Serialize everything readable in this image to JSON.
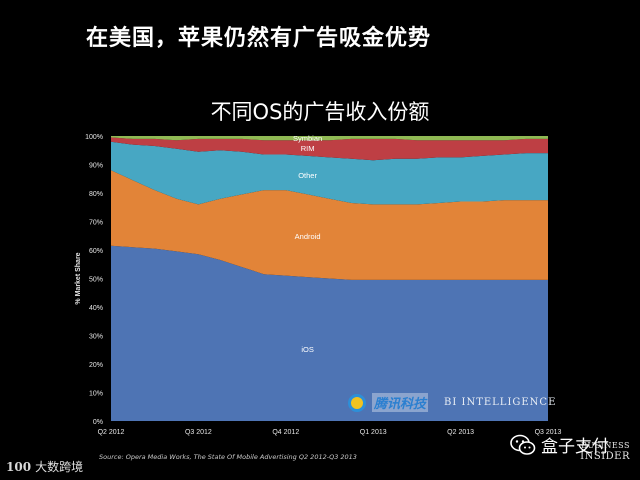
{
  "header": {
    "title": "在美国，苹果仍然有广告吸金优势"
  },
  "chart_data": {
    "type": "area",
    "stacked": true,
    "title": "不同OS的广告收入份额",
    "xlabel": "",
    "ylabel": "% Market Share",
    "ylim": [
      0,
      100
    ],
    "y_ticks": [
      "0%",
      "10%",
      "20%",
      "30%",
      "40%",
      "50%",
      "60%",
      "70%",
      "80%",
      "90%",
      "100%"
    ],
    "categories": [
      "Q2 2012",
      "Q3 2012",
      "Q4 2012",
      "Q1 2013",
      "Q2 2013",
      "Q3 2013"
    ],
    "x": [
      0,
      0.25,
      0.5,
      0.75,
      1.0,
      1.25,
      1.5,
      1.75,
      2.0,
      2.25,
      2.5,
      2.75,
      3.0,
      3.25,
      3.5,
      3.75,
      4.0,
      4.25,
      4.5,
      4.75,
      5.0
    ],
    "series": [
      {
        "name": "iOS",
        "color": "#4e74b4",
        "values": [
          61.5,
          61,
          60.5,
          59.5,
          58.5,
          56.5,
          54,
          51.5,
          51,
          50.5,
          50,
          49.5,
          49.5,
          49.5,
          49.5,
          49.5,
          49.5,
          49.5,
          49.5,
          49.5,
          49.5
        ]
      },
      {
        "name": "Android",
        "color": "#e28438",
        "values": [
          26.5,
          23.5,
          20.5,
          18.5,
          17.5,
          21.5,
          25.5,
          29.5,
          30,
          29,
          28,
          27,
          26.5,
          26.5,
          26.5,
          27,
          27.5,
          27.5,
          28,
          28,
          28
        ]
      },
      {
        "name": "Other",
        "color": "#47a7c3",
        "values": [
          10,
          12.5,
          15.5,
          17.5,
          18.5,
          17,
          15,
          12.5,
          12.5,
          13.5,
          14.5,
          15.5,
          15.5,
          16,
          16,
          16,
          15.5,
          16,
          16,
          16.5,
          16.5
        ]
      },
      {
        "name": "RIM",
        "color": "#be3f44",
        "values": [
          1.5,
          2,
          2.5,
          3,
          4.5,
          4,
          4.5,
          5,
          5,
          5.5,
          6,
          7,
          7.5,
          7,
          6.5,
          6,
          6,
          5.5,
          5,
          5,
          5
        ]
      },
      {
        "name": "Symbian",
        "color": "#90b954",
        "values": [
          0.5,
          1,
          1,
          1.5,
          1,
          1,
          1,
          1.5,
          1.5,
          1.5,
          1.5,
          1,
          1,
          1,
          1.5,
          1.5,
          1.5,
          1.5,
          1.5,
          1,
          1
        ]
      }
    ],
    "labels_on_areas": true,
    "grid": false,
    "legend": "none",
    "source": "Source: Opera Media Works, The State Of Mobile Advertising Q2 2012-Q3 2013"
  },
  "branding": {
    "bi_line1": "BUSINESS",
    "bi_line2": "INSIDER",
    "watermark_brand": "腾讯科技",
    "watermark_bi": "BI INTELLIGENCE",
    "wechat_account": "盒子支付",
    "bottom_logo_mark": "100",
    "bottom_logo_text": "大数跨境"
  }
}
